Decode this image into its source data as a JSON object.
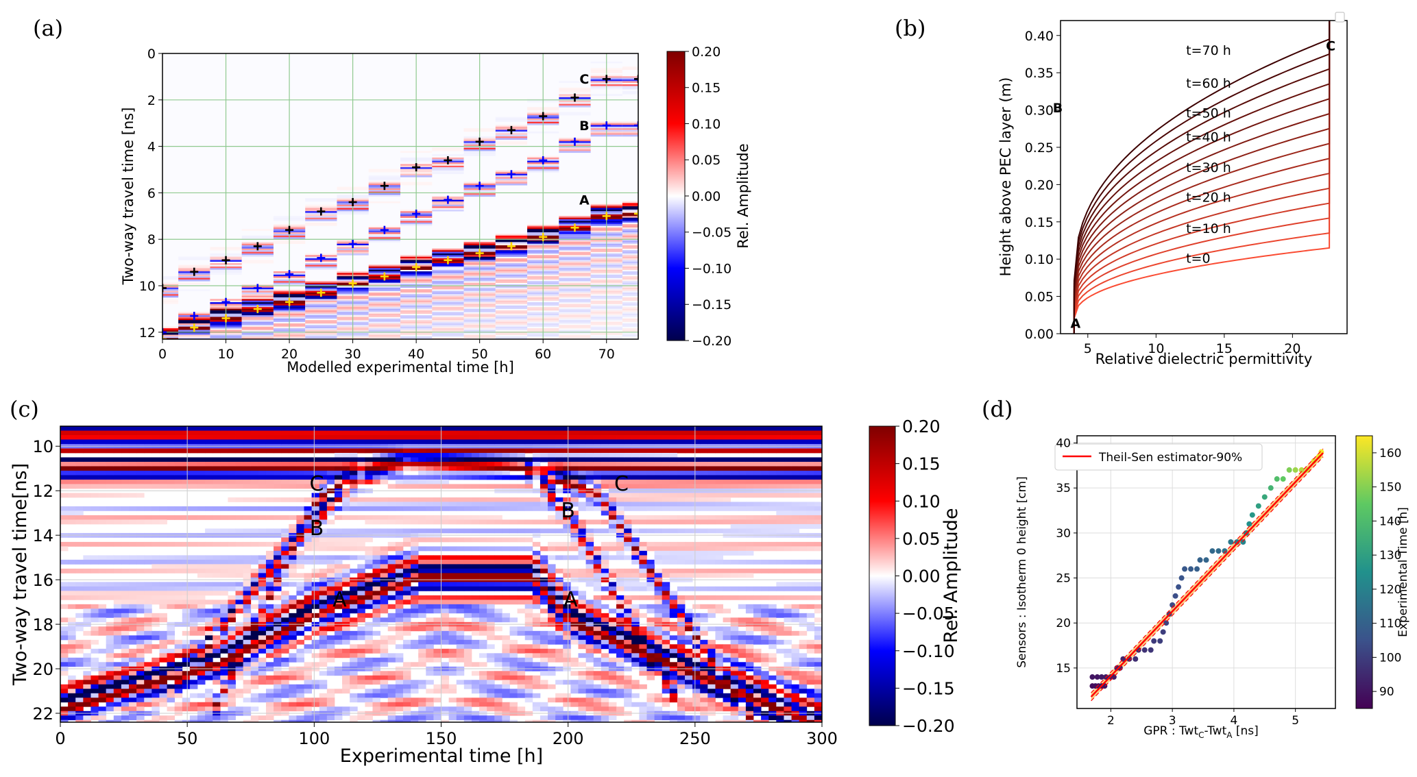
{
  "panels": {
    "a": "(a)",
    "b": "(b)",
    "c": "(c)",
    "d": "(d)"
  },
  "colors": {
    "seismic_low": "#00004c",
    "seismic_mid": "#ffffff",
    "seismic_high": "#7f0000",
    "grid_green": "#8fc98f",
    "fit_red": "#ff0000",
    "marker_black": "#000000",
    "marker_blue": "#0000ff",
    "marker_yellow": "#ffd700"
  },
  "chart_data": [
    {
      "id": "a",
      "type": "heatmap",
      "title": "",
      "xlabel": "Modelled experimental time [h]",
      "ylabel": "Two-way travel time [ns]",
      "xlim": [
        0,
        75
      ],
      "ylim": [
        12.3,
        0
      ],
      "x_ticks": [
        "0",
        "10",
        "20",
        "30",
        "40",
        "50",
        "60",
        "70"
      ],
      "x_tick_values": [
        0,
        10,
        20,
        30,
        40,
        50,
        60,
        70
      ],
      "y_ticks": [
        "0",
        "2",
        "4",
        "6",
        "8",
        "10",
        "12"
      ],
      "y_tick_values": [
        0,
        2,
        4,
        6,
        8,
        10,
        12
      ],
      "grid": true,
      "colorbar": {
        "label": "Rel. Amplitude",
        "ticks": [
          "0.20",
          "0.15",
          "0.10",
          "0.05",
          "0.00",
          "−0.05",
          "−0.10",
          "−0.15",
          "−0.20"
        ],
        "tick_values": [
          0.2,
          0.15,
          0.1,
          0.05,
          0.0,
          -0.05,
          -0.1,
          -0.15,
          -0.2
        ],
        "range": [
          -0.2,
          0.2
        ]
      },
      "trace_times": [
        0,
        5,
        10,
        15,
        20,
        25,
        30,
        35,
        40,
        45,
        50,
        55,
        60,
        65,
        70,
        75
      ],
      "twt_A": [
        12.3,
        11.8,
        11.4,
        11.0,
        10.7,
        10.3,
        9.9,
        9.6,
        9.2,
        8.9,
        8.6,
        8.3,
        7.9,
        7.5,
        7.0,
        6.9
      ],
      "twt_B": [
        12.0,
        11.3,
        10.7,
        10.1,
        9.5,
        8.8,
        8.2,
        7.6,
        6.9,
        6.3,
        5.7,
        5.2,
        4.6,
        3.8,
        3.1,
        3.1
      ],
      "twt_C": [
        10.1,
        9.4,
        8.9,
        8.3,
        7.6,
        6.8,
        6.4,
        5.7,
        4.9,
        4.6,
        3.8,
        3.3,
        2.7,
        1.9,
        1.1,
        1.1
      ],
      "annotations": [
        {
          "text": "C",
          "x": 66.5,
          "y": 1.3
        },
        {
          "text": "B",
          "x": 66.5,
          "y": 3.3
        },
        {
          "text": "A",
          "x": 66.5,
          "y": 6.5
        }
      ]
    },
    {
      "id": "b",
      "type": "line",
      "title": "",
      "xlabel": "Relative dielectric permittivity",
      "ylabel": "Height above PEC layer (m)",
      "xlim": [
        3,
        24
      ],
      "ylim": [
        0,
        0.42
      ],
      "x_ticks": [
        "5",
        "10",
        "15",
        "20"
      ],
      "x_tick_values": [
        5,
        10,
        15,
        20
      ],
      "y_ticks": [
        "0.00",
        "0.05",
        "0.10",
        "0.15",
        "0.20",
        "0.25",
        "0.30",
        "0.35",
        "0.40"
      ],
      "y_tick_values": [
        0,
        0.05,
        0.1,
        0.15,
        0.2,
        0.25,
        0.3,
        0.35,
        0.4
      ],
      "grid": false,
      "eps_left": 4.0,
      "eps_right": 22.7,
      "front_heights": [
        0.115,
        0.135,
        0.155,
        0.175,
        0.195,
        0.215,
        0.235,
        0.255,
        0.275,
        0.295,
        0.315,
        0.335,
        0.355,
        0.375,
        0.395
      ],
      "curve_labels": [
        {
          "text": "t=0",
          "x": 12.2,
          "y": 0.095
        },
        {
          "text": "t=10 h",
          "x": 12.2,
          "y": 0.135
        },
        {
          "text": "t=20 h",
          "x": 12.2,
          "y": 0.177
        },
        {
          "text": "t=30 h",
          "x": 12.2,
          "y": 0.217
        },
        {
          "text": "t=40 h",
          "x": 12.2,
          "y": 0.258
        },
        {
          "text": "t=50 h",
          "x": 12.2,
          "y": 0.29
        },
        {
          "text": "t=60 h",
          "x": 12.2,
          "y": 0.33
        },
        {
          "text": "t=70 h",
          "x": 12.2,
          "y": 0.374
        }
      ],
      "annotations": [
        {
          "text": "A",
          "x": 4.1,
          "y": 0.008
        },
        {
          "text": "B",
          "x": 2.8,
          "y": 0.297
        },
        {
          "text": "C",
          "x": 22.8,
          "y": 0.38
        }
      ]
    },
    {
      "id": "c",
      "type": "heatmap",
      "title": "",
      "xlabel": "Experimental time [h]",
      "ylabel": "Two-way travel time[ns]",
      "xlim": [
        0,
        300
      ],
      "ylim": [
        22.4,
        9.1
      ],
      "x_ticks": [
        "0",
        "50",
        "100",
        "150",
        "200",
        "250",
        "300"
      ],
      "x_tick_values": [
        0,
        50,
        100,
        150,
        200,
        250,
        300
      ],
      "y_ticks": [
        "10",
        "12",
        "14",
        "16",
        "18",
        "20",
        "22"
      ],
      "y_tick_values": [
        10,
        12,
        14,
        16,
        18,
        20,
        22
      ],
      "grid": true,
      "colorbar": {
        "label": "Rel. Amplitude",
        "ticks": [
          "0.20",
          "0.15",
          "0.10",
          "0.05",
          "0.00",
          "−0.05",
          "−0.10",
          "−0.15",
          "−0.20"
        ],
        "tick_values": [
          0.2,
          0.15,
          0.1,
          0.05,
          0.0,
          -0.05,
          -0.1,
          -0.15,
          -0.2
        ],
        "range": [
          -0.2,
          0.2
        ]
      },
      "reflector_A": {
        "x": [
          0,
          60,
          100,
          140,
          185,
          200,
          300
        ],
        "y": [
          21.5,
          19.5,
          17.2,
          15.6,
          15.6,
          17.6,
          22.4
        ]
      },
      "reflector_B": {
        "x": [
          40,
          90,
          115,
          130,
          185,
          200,
          240
        ],
        "y": [
          21.0,
          14.2,
          11.3,
          11.0,
          11.0,
          13.2,
          21.0
        ]
      },
      "reflector_C": {
        "x": [
          60,
          100,
          120,
          135,
          180,
          210,
          270
        ],
        "y": [
          21.5,
          12.2,
          10.9,
          10.6,
          10.8,
          12.0,
          22.0
        ]
      },
      "annotations": [
        {
          "text": "C",
          "x": 101,
          "y": 12.0
        },
        {
          "text": "B",
          "x": 101,
          "y": 14.0
        },
        {
          "text": "A",
          "x": 110,
          "y": 17.2
        },
        {
          "text": "B",
          "x": 200,
          "y": 13.2
        },
        {
          "text": "C",
          "x": 221,
          "y": 12.0
        },
        {
          "text": "A",
          "x": 201,
          "y": 17.2
        }
      ]
    },
    {
      "id": "d",
      "type": "scatter",
      "title": "",
      "xlabel": "GPR : Twt_C-Twt_A [ns]",
      "ylabel": "Sensors : Isotherm 0 height [cm]",
      "xlim": [
        1.45,
        5.65
      ],
      "ylim": [
        10.5,
        40.8
      ],
      "x_ticks": [
        "2",
        "3",
        "4",
        "5"
      ],
      "x_tick_values": [
        2,
        3,
        4,
        5
      ],
      "y_ticks": [
        "15",
        "20",
        "25",
        "30",
        "35",
        "40"
      ],
      "y_tick_values": [
        15,
        20,
        25,
        30,
        35,
        40
      ],
      "grid": true,
      "legend": {
        "position": "top-left",
        "entries": [
          "Theil-Sen estimator-90%"
        ]
      },
      "fit": {
        "x": [
          1.68,
          5.45
        ],
        "y": [
          11.8,
          38.9
        ]
      },
      "fit_band": 0.45,
      "colorbar": {
        "label": "Experimental Time [h]",
        "ticks": [
          "160",
          "150",
          "140",
          "130",
          "120",
          "110",
          "100",
          "90"
        ],
        "tick_values": [
          160,
          150,
          140,
          130,
          120,
          110,
          100,
          90
        ],
        "range": [
          85,
          165
        ]
      },
      "points": [
        [
          1.7,
          13.0,
          88
        ],
        [
          1.75,
          13.0,
          88
        ],
        [
          1.8,
          13.0,
          89
        ],
        [
          1.85,
          13.0,
          89
        ],
        [
          1.9,
          13.0,
          90
        ],
        [
          1.7,
          14.0,
          90
        ],
        [
          1.78,
          14.0,
          90
        ],
        [
          1.85,
          14.0,
          91
        ],
        [
          1.92,
          14.0,
          91
        ],
        [
          2.0,
          14.0,
          92
        ],
        [
          2.05,
          14.0,
          92
        ],
        [
          2.1,
          15.0,
          93
        ],
        [
          2.15,
          15.0,
          93
        ],
        [
          2.2,
          16.0,
          94
        ],
        [
          2.3,
          16.0,
          95
        ],
        [
          2.4,
          16.0,
          96
        ],
        [
          2.45,
          17.0,
          96
        ],
        [
          2.55,
          17.0,
          97
        ],
        [
          2.65,
          17.0,
          98
        ],
        [
          2.7,
          18.0,
          99
        ],
        [
          2.8,
          18.0,
          100
        ],
        [
          2.85,
          19.0,
          100
        ],
        [
          2.9,
          20.0,
          101
        ],
        [
          2.95,
          21.0,
          102
        ],
        [
          3.0,
          22.0,
          103
        ],
        [
          3.05,
          23.0,
          104
        ],
        [
          3.1,
          24.0,
          105
        ],
        [
          3.15,
          25.0,
          106
        ],
        [
          3.2,
          26.0,
          107
        ],
        [
          3.3,
          26.0,
          108
        ],
        [
          3.4,
          26.0,
          109
        ],
        [
          3.45,
          27.0,
          110
        ],
        [
          3.55,
          27.0,
          111
        ],
        [
          3.65,
          28.0,
          112
        ],
        [
          3.75,
          28.0,
          113
        ],
        [
          3.85,
          28.0,
          115
        ],
        [
          3.95,
          29.0,
          117
        ],
        [
          4.05,
          29.0,
          119
        ],
        [
          4.15,
          29.0,
          121
        ],
        [
          4.2,
          30.0,
          123
        ],
        [
          4.25,
          31.0,
          125
        ],
        [
          4.3,
          32.0,
          127
        ],
        [
          4.4,
          33.0,
          130
        ],
        [
          4.5,
          34.0,
          133
        ],
        [
          4.6,
          35.0,
          137
        ],
        [
          4.7,
          36.0,
          141
        ],
        [
          4.8,
          36.0,
          145
        ],
        [
          4.9,
          37.0,
          149
        ],
        [
          5.0,
          37.0,
          153
        ],
        [
          5.1,
          37.0,
          156
        ],
        [
          5.2,
          37.0,
          159
        ],
        [
          5.3,
          38.0,
          161
        ],
        [
          5.38,
          38.5,
          163
        ],
        [
          5.42,
          39.0,
          164
        ]
      ]
    }
  ]
}
